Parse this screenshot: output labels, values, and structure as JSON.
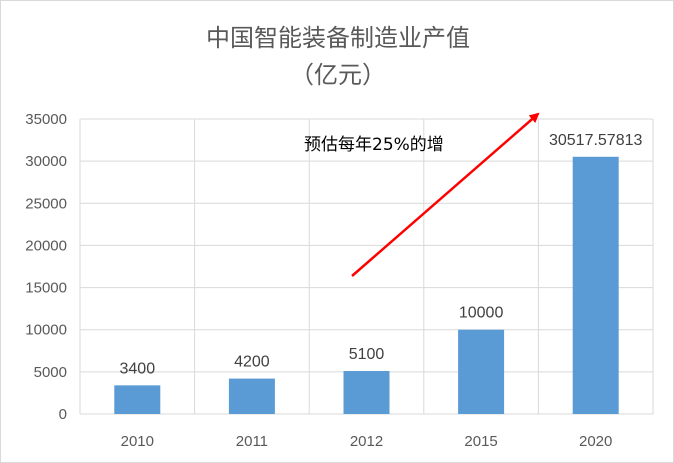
{
  "chart_data": {
    "type": "bar",
    "title": "中国智能装备制造业产值",
    "subtitle": "（亿元）",
    "categories": [
      "2010",
      "2011",
      "2012",
      "2015",
      "2020"
    ],
    "values": [
      3400,
      4200,
      5100,
      10000,
      30517.57813
    ],
    "data_labels": [
      "3400",
      "4200",
      "5100",
      "10000",
      "30517.57813"
    ],
    "ylim": [
      0,
      35000
    ],
    "yticks": [
      0,
      5000,
      10000,
      15000,
      20000,
      25000,
      30000,
      35000
    ],
    "ytick_labels": [
      "0",
      "5000",
      "10000",
      "15000",
      "20000",
      "25000",
      "30000",
      "35000"
    ],
    "xlabel": "",
    "ylabel": "",
    "grid": true,
    "legend": "none",
    "annotation": "预估每年25%的增",
    "colors": {
      "bar": "#5b9bd5",
      "grid": "#d9d9d9",
      "arrow": "#ff0000",
      "text": "#595959"
    }
  }
}
